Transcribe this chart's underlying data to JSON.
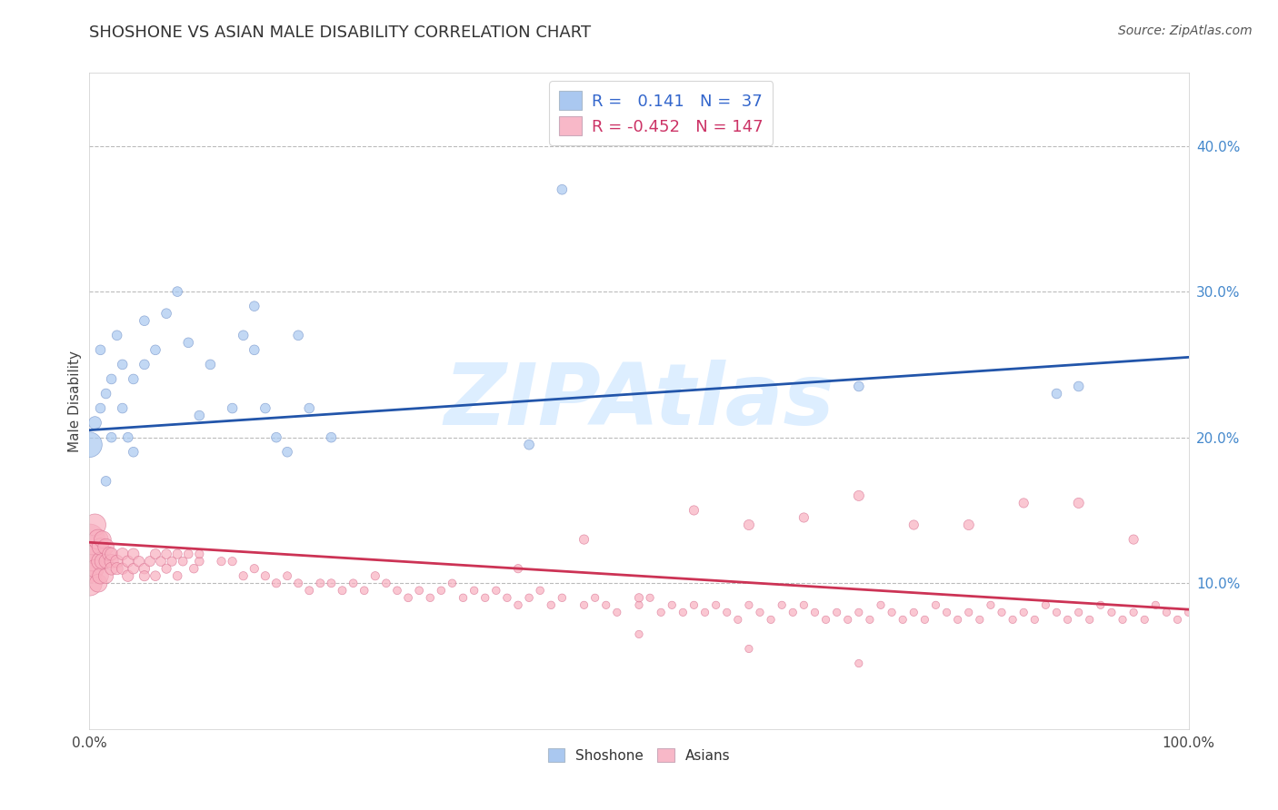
{
  "title": "SHOSHONE VS ASIAN MALE DISABILITY CORRELATION CHART",
  "source": "Source: ZipAtlas.com",
  "ylabel": "Male Disability",
  "xlim": [
    0.0,
    1.0
  ],
  "ylim": [
    0.0,
    0.45
  ],
  "shoshone_R": 0.141,
  "shoshone_N": 37,
  "asian_R": -0.452,
  "asian_N": 147,
  "blue_color": "#a8c8f0",
  "pink_color": "#f8b0c0",
  "blue_edge_color": "#7090c8",
  "pink_edge_color": "#d87090",
  "blue_line_color": "#2255aa",
  "pink_line_color": "#cc3355",
  "legend_box_blue": "#aac8f0",
  "legend_box_pink": "#f8b8c8",
  "blue_line_y0": 0.205,
  "blue_line_y1": 0.255,
  "pink_line_y0": 0.128,
  "pink_line_y1": 0.082,
  "shoshone_x": [
    0.005,
    0.01,
    0.01,
    0.015,
    0.015,
    0.02,
    0.02,
    0.025,
    0.03,
    0.03,
    0.035,
    0.04,
    0.04,
    0.05,
    0.05,
    0.06,
    0.07,
    0.08,
    0.09,
    0.1,
    0.11,
    0.13,
    0.14,
    0.15,
    0.15,
    0.16,
    0.17,
    0.19,
    0.2,
    0.22,
    0.4,
    0.43,
    0.7,
    0.88,
    0.9,
    0.18,
    0.0
  ],
  "shoshone_y": [
    0.21,
    0.22,
    0.26,
    0.17,
    0.23,
    0.2,
    0.24,
    0.27,
    0.25,
    0.22,
    0.2,
    0.19,
    0.24,
    0.25,
    0.28,
    0.26,
    0.285,
    0.3,
    0.265,
    0.215,
    0.25,
    0.22,
    0.27,
    0.26,
    0.29,
    0.22,
    0.2,
    0.27,
    0.22,
    0.2,
    0.195,
    0.37,
    0.235,
    0.23,
    0.235,
    0.19,
    0.195
  ],
  "shoshone_sizes": [
    100,
    60,
    60,
    60,
    60,
    60,
    60,
    60,
    60,
    60,
    60,
    60,
    60,
    60,
    60,
    60,
    60,
    60,
    60,
    60,
    60,
    60,
    60,
    60,
    60,
    60,
    60,
    60,
    60,
    60,
    60,
    60,
    60,
    60,
    60,
    60,
    400
  ],
  "asian_x_dense": [
    0.0,
    0.0,
    0.0,
    0.0,
    0.005,
    0.005,
    0.005,
    0.008,
    0.008,
    0.01,
    0.01,
    0.01,
    0.012,
    0.012,
    0.015,
    0.015,
    0.015,
    0.018,
    0.02,
    0.02,
    0.02,
    0.025,
    0.025,
    0.03,
    0.03,
    0.035,
    0.035,
    0.04,
    0.04,
    0.045,
    0.05,
    0.05,
    0.055,
    0.06,
    0.06,
    0.065,
    0.07,
    0.07,
    0.075,
    0.08,
    0.08,
    0.085,
    0.09,
    0.095,
    0.1
  ],
  "asian_y_dense": [
    0.12,
    0.13,
    0.11,
    0.1,
    0.14,
    0.12,
    0.11,
    0.13,
    0.1,
    0.115,
    0.125,
    0.105,
    0.13,
    0.115,
    0.125,
    0.105,
    0.115,
    0.12,
    0.115,
    0.12,
    0.11,
    0.115,
    0.11,
    0.12,
    0.11,
    0.115,
    0.105,
    0.12,
    0.11,
    0.115,
    0.11,
    0.105,
    0.115,
    0.12,
    0.105,
    0.115,
    0.12,
    0.11,
    0.115,
    0.12,
    0.105,
    0.115,
    0.12,
    0.11,
    0.115
  ],
  "asian_sizes_dense": [
    800,
    600,
    500,
    400,
    300,
    250,
    200,
    250,
    200,
    200,
    180,
    160,
    180,
    160,
    160,
    140,
    120,
    120,
    120,
    100,
    100,
    100,
    90,
    90,
    80,
    80,
    80,
    80,
    70,
    70,
    70,
    65,
    65,
    65,
    60,
    60,
    60,
    55,
    55,
    55,
    50,
    50,
    50,
    48,
    48
  ],
  "asian_x_spread": [
    0.1,
    0.12,
    0.14,
    0.15,
    0.16,
    0.17,
    0.18,
    0.19,
    0.2,
    0.21,
    0.22,
    0.23,
    0.24,
    0.25,
    0.27,
    0.28,
    0.29,
    0.3,
    0.31,
    0.32,
    0.33,
    0.34,
    0.35,
    0.36,
    0.37,
    0.38,
    0.39,
    0.4,
    0.41,
    0.42,
    0.43,
    0.45,
    0.46,
    0.47,
    0.48,
    0.5,
    0.51,
    0.52,
    0.53,
    0.54,
    0.55,
    0.56,
    0.57,
    0.58,
    0.59,
    0.6,
    0.61,
    0.62,
    0.63,
    0.64,
    0.65,
    0.66,
    0.67,
    0.68,
    0.69,
    0.7,
    0.71,
    0.72,
    0.73,
    0.74,
    0.75,
    0.76,
    0.77,
    0.78,
    0.79,
    0.8,
    0.81,
    0.82,
    0.83,
    0.84,
    0.85,
    0.86,
    0.87,
    0.88,
    0.89,
    0.9,
    0.91,
    0.92,
    0.93,
    0.94,
    0.95,
    0.96,
    0.97,
    0.98,
    0.99,
    1.0,
    0.13,
    0.26,
    0.39,
    0.5,
    0.6,
    0.7,
    0.8,
    0.9,
    0.45,
    0.55,
    0.65,
    0.75,
    0.85,
    0.95,
    0.5,
    0.6,
    0.7
  ],
  "asian_y_spread": [
    0.12,
    0.115,
    0.105,
    0.11,
    0.105,
    0.1,
    0.105,
    0.1,
    0.095,
    0.1,
    0.1,
    0.095,
    0.1,
    0.095,
    0.1,
    0.095,
    0.09,
    0.095,
    0.09,
    0.095,
    0.1,
    0.09,
    0.095,
    0.09,
    0.095,
    0.09,
    0.085,
    0.09,
    0.095,
    0.085,
    0.09,
    0.085,
    0.09,
    0.085,
    0.08,
    0.085,
    0.09,
    0.08,
    0.085,
    0.08,
    0.085,
    0.08,
    0.085,
    0.08,
    0.075,
    0.085,
    0.08,
    0.075,
    0.085,
    0.08,
    0.085,
    0.08,
    0.075,
    0.08,
    0.075,
    0.08,
    0.075,
    0.085,
    0.08,
    0.075,
    0.08,
    0.075,
    0.085,
    0.08,
    0.075,
    0.08,
    0.075,
    0.085,
    0.08,
    0.075,
    0.08,
    0.075,
    0.085,
    0.08,
    0.075,
    0.08,
    0.075,
    0.085,
    0.08,
    0.075,
    0.08,
    0.075,
    0.085,
    0.08,
    0.075,
    0.08,
    0.115,
    0.105,
    0.11,
    0.09,
    0.14,
    0.16,
    0.14,
    0.155,
    0.13,
    0.15,
    0.145,
    0.14,
    0.155,
    0.13,
    0.065,
    0.055,
    0.045
  ],
  "asian_sizes_spread": [
    45,
    45,
    45,
    45,
    45,
    45,
    42,
    42,
    42,
    42,
    42,
    42,
    40,
    40,
    40,
    40,
    40,
    40,
    38,
    38,
    38,
    38,
    38,
    38,
    38,
    38,
    38,
    38,
    38,
    38,
    38,
    36,
    36,
    36,
    36,
    36,
    36,
    36,
    36,
    36,
    36,
    36,
    36,
    36,
    36,
    36,
    36,
    36,
    36,
    36,
    36,
    36,
    36,
    36,
    36,
    36,
    36,
    36,
    36,
    36,
    36,
    36,
    36,
    36,
    36,
    36,
    36,
    36,
    36,
    36,
    36,
    36,
    36,
    36,
    36,
    36,
    36,
    36,
    36,
    36,
    36,
    36,
    36,
    36,
    36,
    36,
    45,
    45,
    45,
    45,
    65,
    65,
    65,
    65,
    55,
    55,
    55,
    55,
    55,
    55,
    36,
    36,
    36
  ],
  "background_color": "#ffffff",
  "watermark": "ZIPAtlas",
  "watermark_color": "#ddeeff"
}
